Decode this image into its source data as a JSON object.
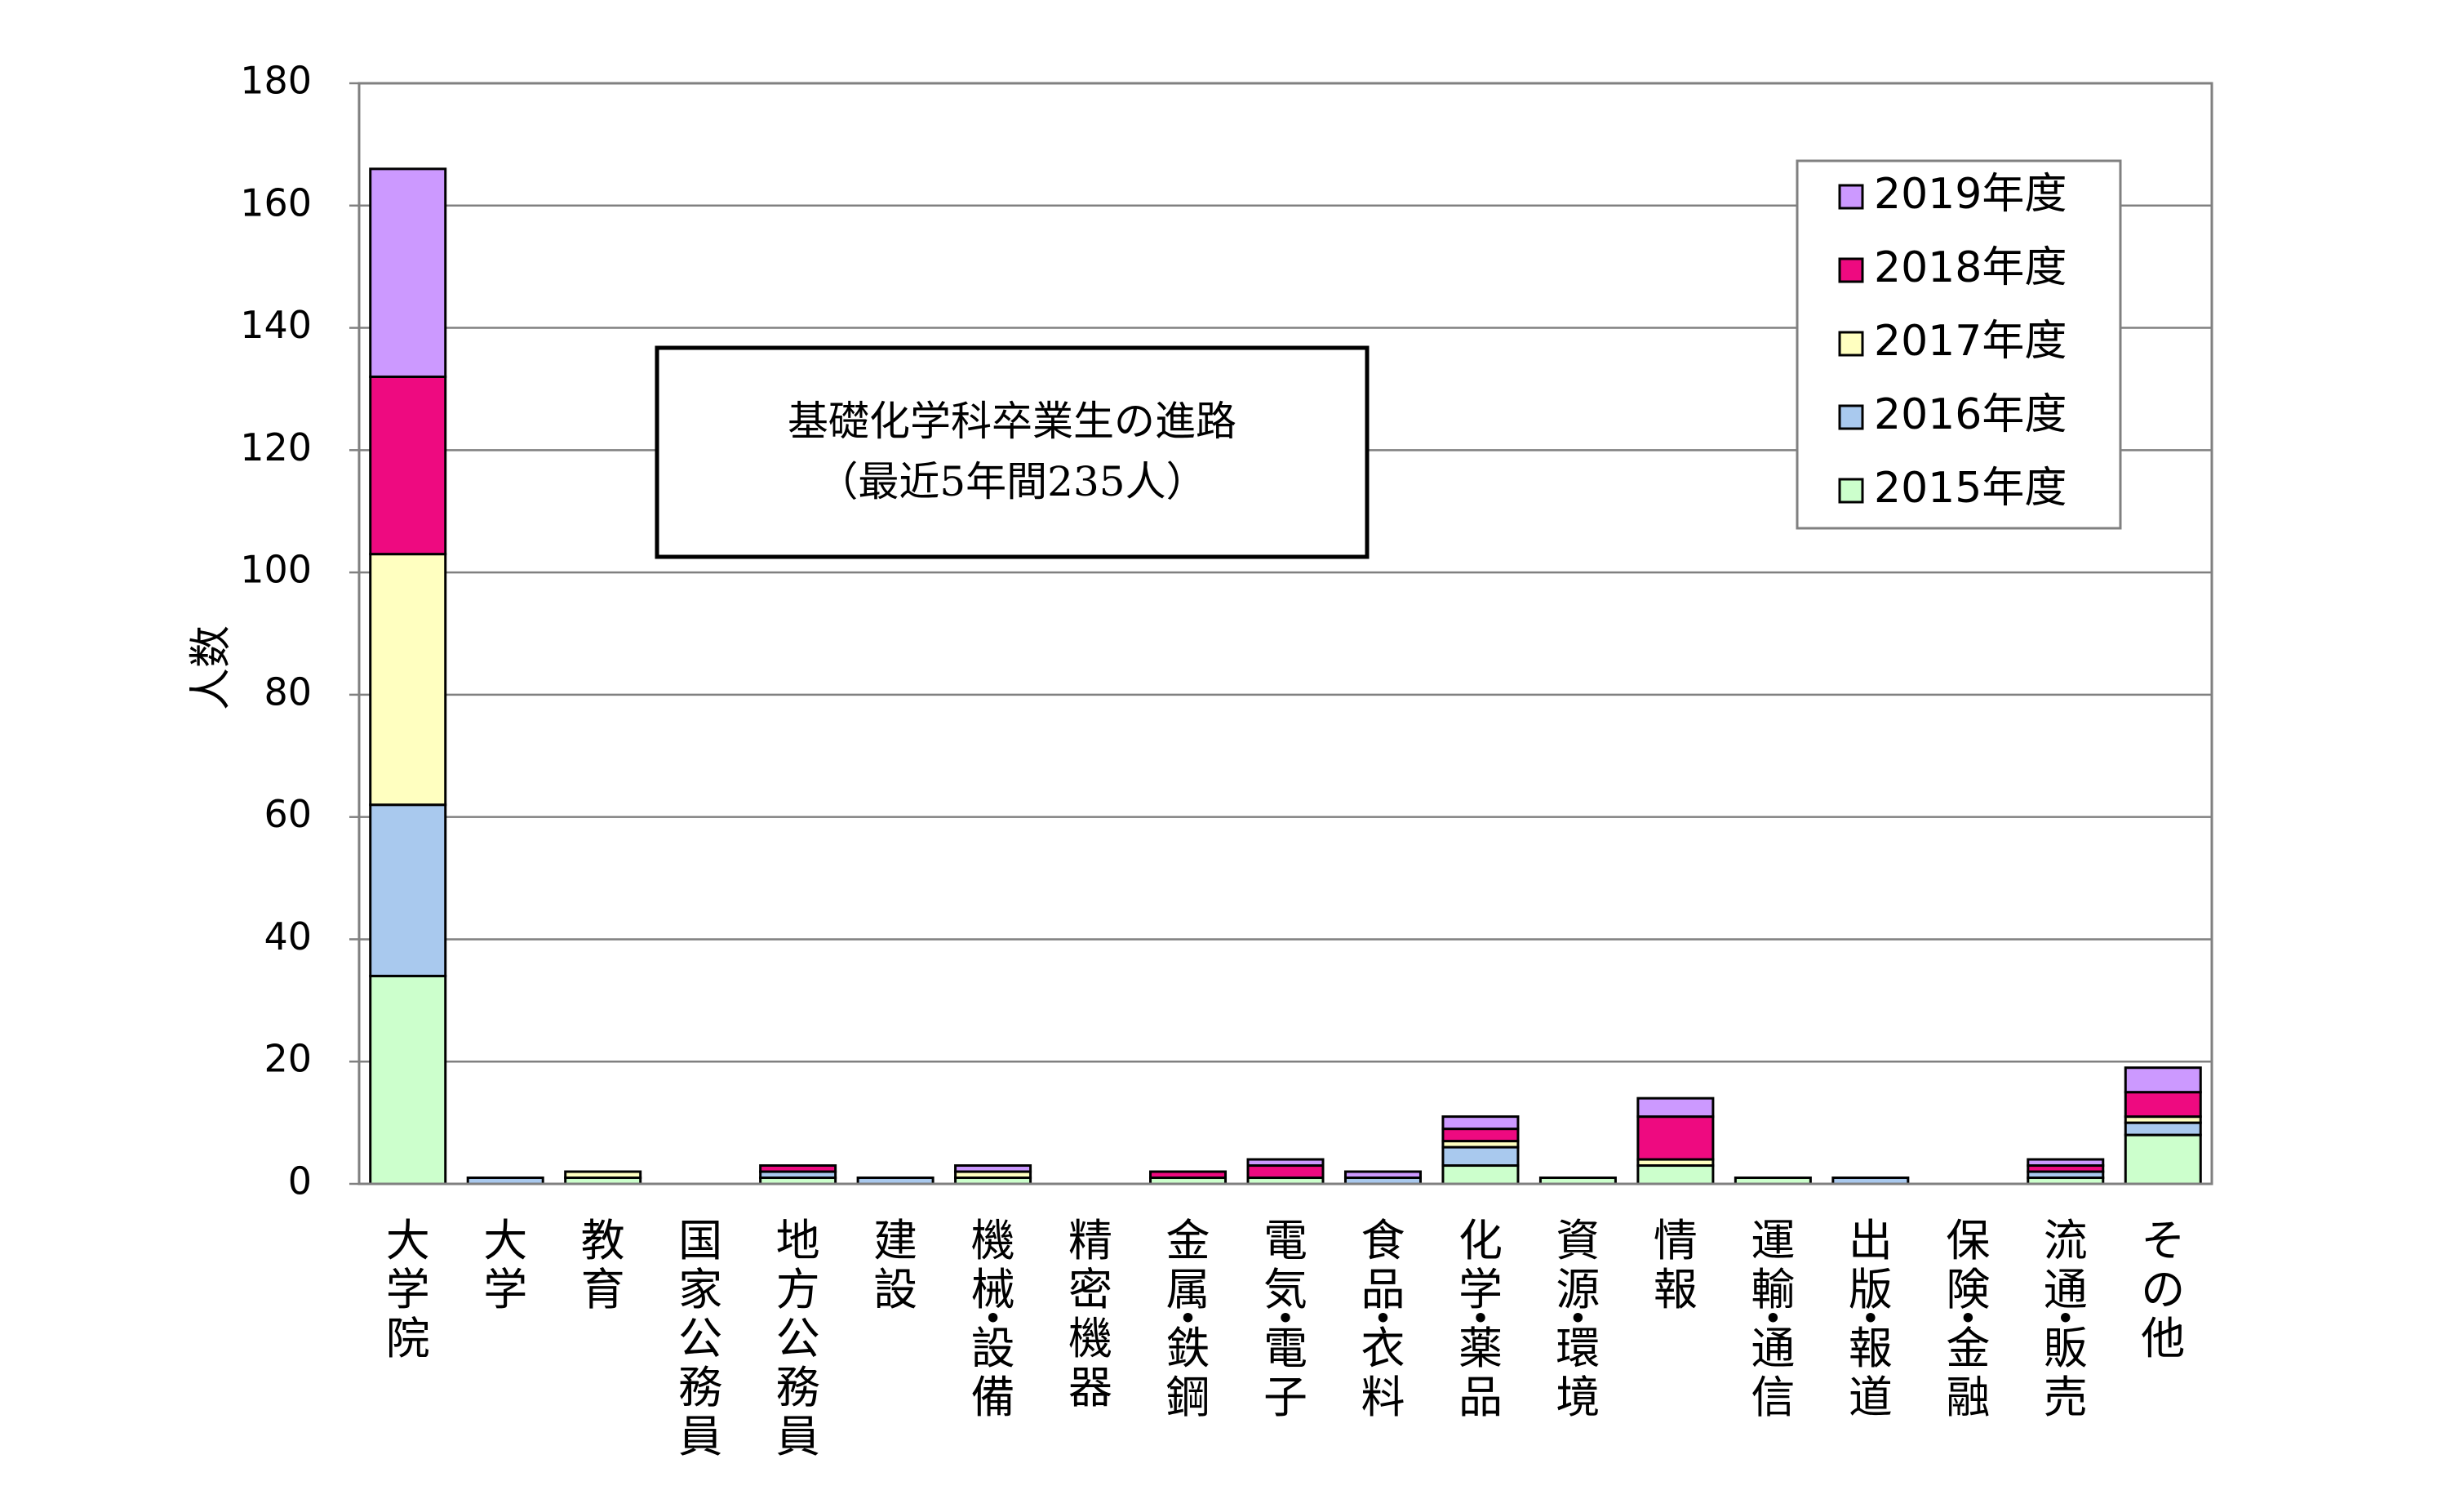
{
  "chart_data": {
    "type": "bar",
    "stacked": true,
    "title": "基礎化学科卒業生の進路",
    "subtitle": "（最近5年間235人）",
    "ylabel": "人数",
    "xlabel": "",
    "ylim": [
      0,
      180
    ],
    "yticks": [
      0,
      20,
      40,
      60,
      80,
      100,
      120,
      140,
      160,
      180
    ],
    "grid": true,
    "legend_position": "top-right",
    "categories": [
      "大学院",
      "大学",
      "教育",
      "国家公務員",
      "地方公務員",
      "建設",
      "機械・設備",
      "精密機器",
      "金属・鉄鋼",
      "電気・電子",
      "食品・衣料",
      "化学・薬品",
      "資源・環境",
      "情報",
      "運輸・通信",
      "出版・報道",
      "保険・金融",
      "流通・販売",
      "その他"
    ],
    "series": [
      {
        "name": "2015年度",
        "color": "#ccffcc",
        "values": [
          34,
          0,
          1,
          0,
          1,
          0,
          1,
          0,
          1,
          1,
          0,
          3,
          1,
          3,
          1,
          0,
          0,
          1,
          8
        ]
      },
      {
        "name": "2016年度",
        "color": "#a9c9ee",
        "values": [
          28,
          1,
          0,
          0,
          1,
          1,
          0,
          0,
          0,
          0,
          1,
          3,
          0,
          0,
          0,
          1,
          0,
          1,
          2
        ]
      },
      {
        "name": "2017年度",
        "color": "#ffffc0",
        "values": [
          41,
          0,
          1,
          0,
          0,
          0,
          1,
          0,
          0,
          0,
          0,
          1,
          0,
          1,
          0,
          0,
          0,
          0,
          1
        ]
      },
      {
        "name": "2018年度",
        "color": "#ee0a80",
        "values": [
          29,
          0,
          0,
          0,
          1,
          0,
          0,
          0,
          1,
          2,
          0,
          2,
          0,
          7,
          0,
          0,
          0,
          1,
          4
        ]
      },
      {
        "name": "2019年度",
        "color": "#cc99ff",
        "values": [
          34,
          0,
          0,
          0,
          0,
          0,
          1,
          0,
          0,
          1,
          1,
          2,
          0,
          3,
          0,
          0,
          0,
          1,
          4
        ]
      }
    ]
  }
}
